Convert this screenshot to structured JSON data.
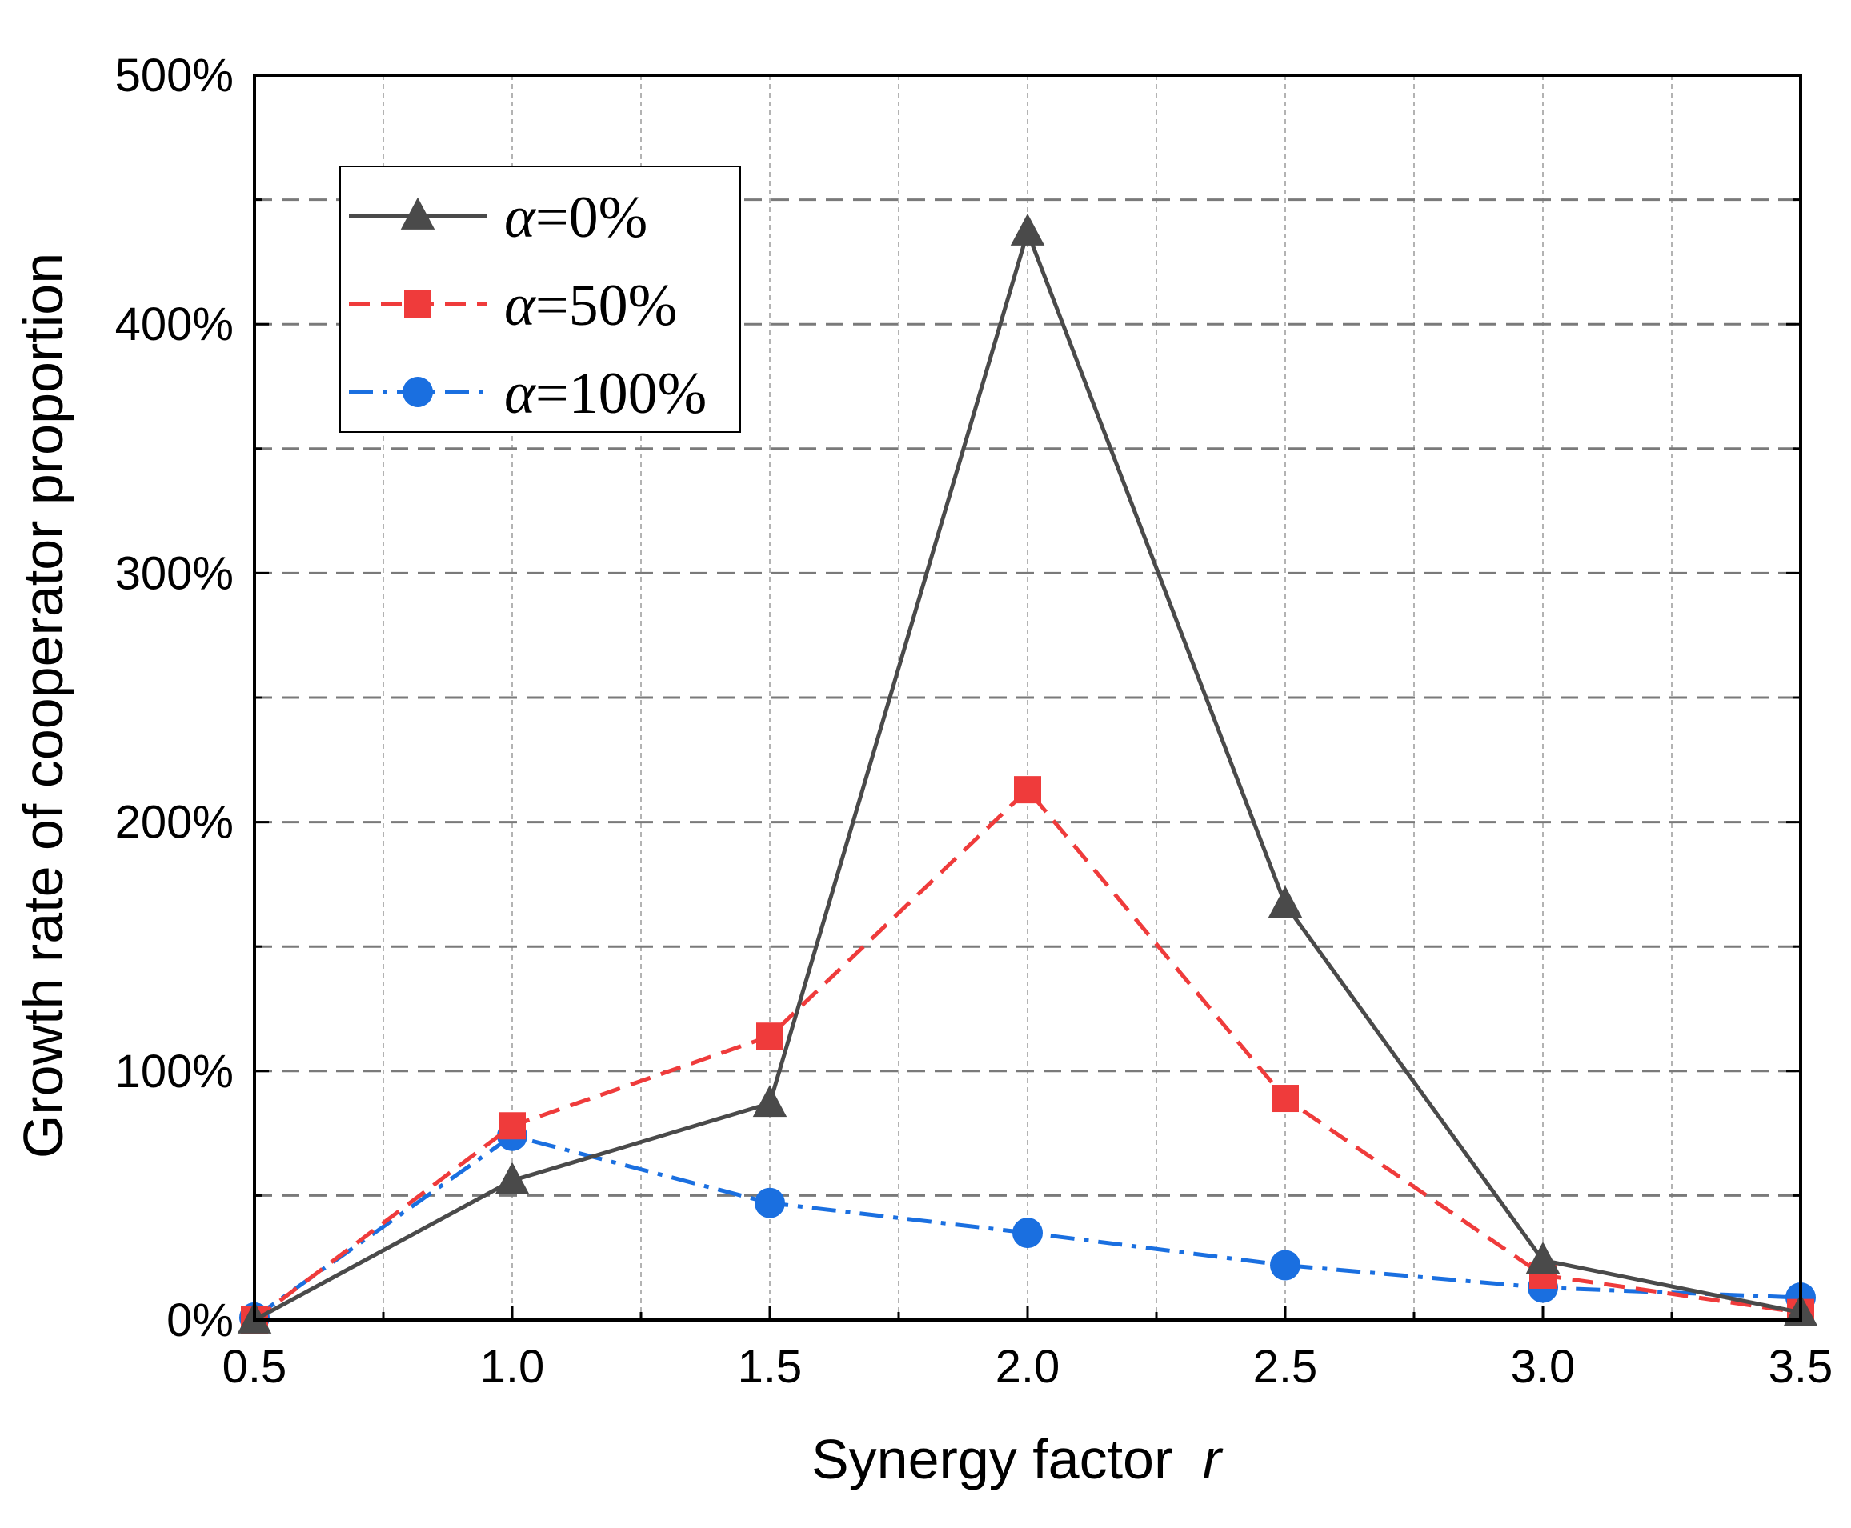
{
  "chart_data": {
    "type": "line",
    "title": "",
    "xlabel": "Synergy factor",
    "xlabel_var": "r",
    "ylabel": "Growth rate of cooperator proportion",
    "x": [
      0.5,
      1.0,
      1.5,
      2.0,
      2.5,
      3.0,
      3.5
    ],
    "xlim": [
      0.5,
      3.5
    ],
    "ylim": [
      0,
      500
    ],
    "x_ticks": [
      0.5,
      1.0,
      1.5,
      2.0,
      2.5,
      3.0,
      3.5
    ],
    "x_tick_labels": [
      "0.5",
      "1.0",
      "1.5",
      "2.0",
      "2.5",
      "3.0",
      "3.5"
    ],
    "y_ticks": [
      0,
      100,
      200,
      300,
      400,
      500
    ],
    "y_tick_labels": [
      "0%",
      "100%",
      "200%",
      "300%",
      "400%",
      "500%"
    ],
    "grid": true,
    "legend_position": "top-left",
    "series": [
      {
        "name": "α=0%",
        "legend_symbol": "α",
        "legend_value": "=0%",
        "marker": "triangle",
        "line_style": "solid",
        "color": "#4a4a4a",
        "values": [
          0,
          56,
          87,
          437,
          167,
          24,
          3
        ]
      },
      {
        "name": "α=50%",
        "legend_symbol": "α",
        "legend_value": "=50%",
        "marker": "square",
        "line_style": "dashed",
        "color": "#ef3b3b",
        "values": [
          0,
          78,
          114,
          213,
          89,
          18,
          3
        ]
      },
      {
        "name": "α=100%",
        "legend_symbol": "α",
        "legend_value": "=100%",
        "marker": "circle",
        "line_style": "dashdot",
        "color": "#1a6fe0",
        "values": [
          1,
          74,
          47,
          35,
          22,
          13,
          9
        ]
      }
    ]
  }
}
